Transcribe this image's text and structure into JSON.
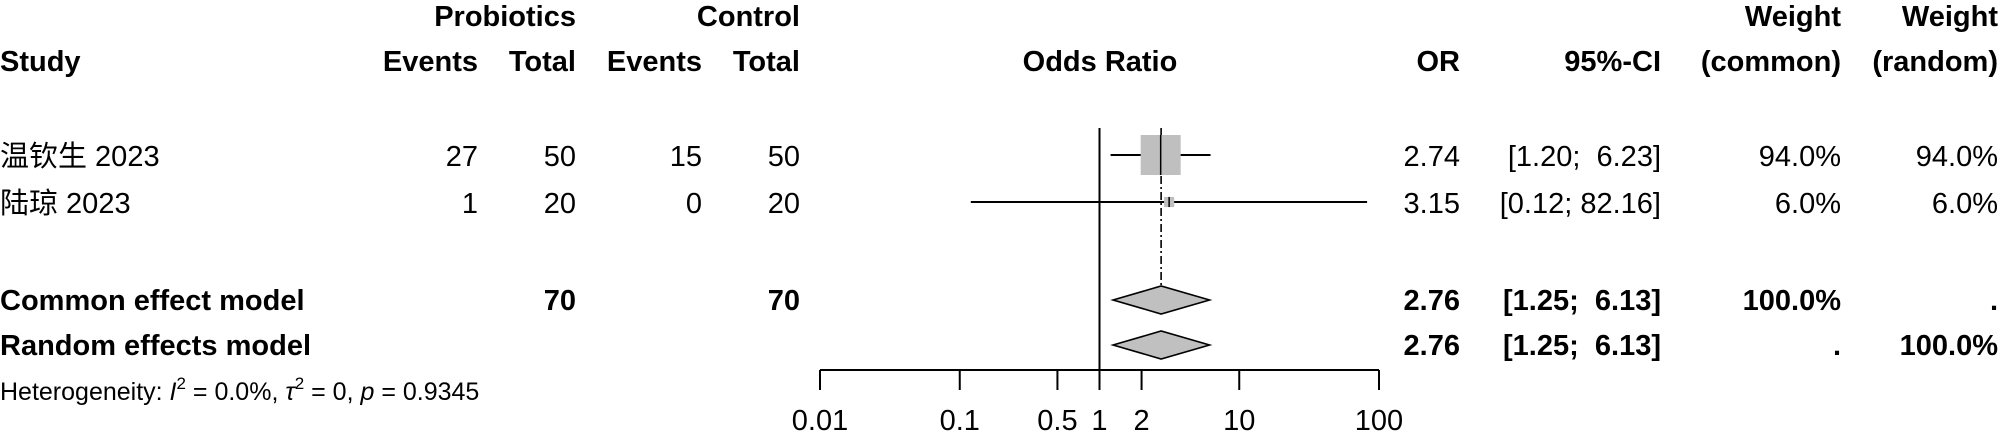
{
  "headers": {
    "group1": "Probiotics",
    "group2": "Control",
    "study": "Study",
    "events1": "Events",
    "total1": "Total",
    "events2": "Events",
    "total2": "Total",
    "odds_ratio": "Odds Ratio",
    "or": "OR",
    "ci": "95%-CI",
    "weight_common_1": "Weight",
    "weight_common_2": "(common)",
    "weight_random_1": "Weight",
    "weight_random_2": "(random)"
  },
  "studies": [
    {
      "name": "温钦生 2023",
      "events1": "27",
      "total1": "50",
      "events2": "15",
      "total2": "50",
      "or_text": "2.74",
      "ci_text": "[1.20;  6.23]",
      "w_common": "94.0%",
      "w_random": "94.0%"
    },
    {
      "name": "陆琼 2023",
      "events1": "1",
      "total1": "20",
      "events2": "0",
      "total2": "20",
      "or_text": "3.15",
      "ci_text": "[0.12; 82.16]",
      "w_common": "6.0%",
      "w_random": "6.0%"
    }
  ],
  "pooled": [
    {
      "name": "Common effect model",
      "total1": "70",
      "total2": "70",
      "or_text": "2.76",
      "ci_text": "[1.25;  6.13]",
      "w_common": "100.0%",
      "w_random": "."
    },
    {
      "name": "Random effects model",
      "total1": "",
      "total2": "",
      "or_text": "2.76",
      "ci_text": "[1.25;  6.13]",
      "w_common": ".",
      "w_random": "100.0%"
    }
  ],
  "heterogeneity": {
    "prefix": "Heterogeneity: ",
    "i2_symbol": "I",
    "i2_value": " = 0.0%, ",
    "tau_symbol": "τ",
    "tau_value": " = 0, ",
    "p_symbol": "p",
    "p_value": " = 0.9345",
    "sup": "2"
  },
  "axis": {
    "tick_labels": [
      "0.01",
      "0.1",
      "0.5",
      "1",
      "2",
      "10",
      "100"
    ]
  },
  "chart_data": {
    "type": "forest",
    "scale": "log",
    "xlim": [
      0.01,
      100
    ],
    "ticks": [
      0.01,
      0.1,
      0.5,
      1,
      2,
      10,
      100
    ],
    "null_value": 1,
    "series": [
      {
        "name": "温钦生 2023",
        "or": 2.74,
        "lower": 1.2,
        "upper": 6.23,
        "weight": 94.0
      },
      {
        "name": "陆琼 2023",
        "or": 3.15,
        "lower": 0.12,
        "upper": 82.16,
        "weight": 6.0
      }
    ],
    "pooled": [
      {
        "name": "Common effect model",
        "or": 2.76,
        "lower": 1.25,
        "upper": 6.13
      },
      {
        "name": "Random effects model",
        "or": 2.76,
        "lower": 1.25,
        "upper": 6.13
      }
    ],
    "colors": {
      "box": "#bfbfbf",
      "diamond": "#c0c0c0",
      "line": "#000000"
    }
  }
}
